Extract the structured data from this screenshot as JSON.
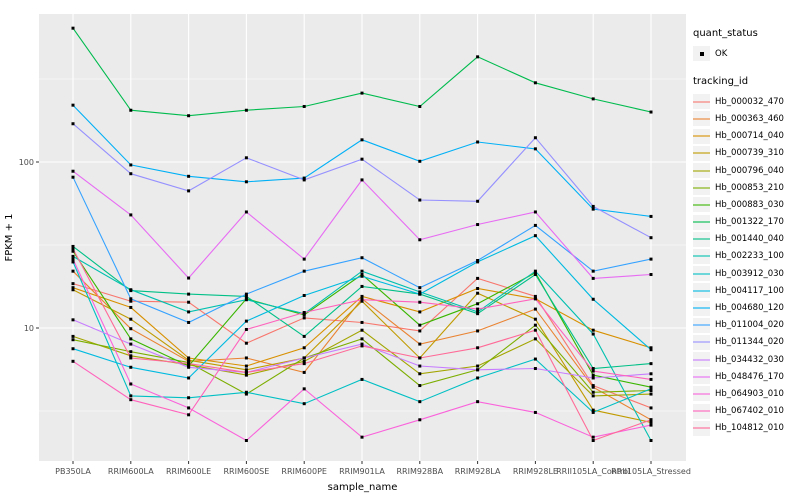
{
  "figure": {
    "background": "#FFFFFF",
    "panel_background": "#EBEBEB",
    "grid_color": "#FFFFFF",
    "tick_label_color": "#4D4D4D",
    "point_color": "#000000"
  },
  "legend": {
    "quant_status_title": "quant_status",
    "quant_status_item": "OK",
    "tracking_id_title": "tracking_id"
  },
  "chart_data": {
    "type": "line",
    "x_type": "categorical",
    "xlabel": "sample_name",
    "ylabel": "FPKM + 1",
    "y_scale": "log10",
    "y_ticks": [
      100,
      10
    ],
    "y_minor_ticks": [
      316.2,
      31.62,
      3.162
    ],
    "ylim": [
      1.6,
      760
    ],
    "grid": true,
    "legend_position": "right",
    "point_shape": "small black square (quant_status = OK)",
    "categories": [
      "PB350LA",
      "RRIM600LA",
      "RRIM600LE",
      "RRIM600SE",
      "RRIM600PE",
      "RRIM901LA",
      "RRIM928BA",
      "RRIM928LA",
      "RRIM928LE",
      "RRII105LA_Control",
      "RRII105LA_Stressed"
    ],
    "series": [
      {
        "name": "Hb_000032_470",
        "color": "#F8766D",
        "values": [
          18.5,
          14.5,
          14.3,
          8.1,
          11.5,
          10.8,
          9.6,
          19.9,
          15.5,
          4.5,
          3.3
        ]
      },
      {
        "name": "Hb_000363_460",
        "color": "#EA8331",
        "values": [
          22,
          9.9,
          6.3,
          6.6,
          5.4,
          15,
          8.0,
          9.6,
          13,
          4.4,
          2.8
        ]
      },
      {
        "name": "Hb_000714_040",
        "color": "#D89000",
        "values": [
          17.5,
          13.3,
          6.6,
          5.9,
          7.6,
          15.5,
          12.5,
          17.3,
          15,
          9.7,
          7.6
        ]
      },
      {
        "name": "Hb_000739_310",
        "color": "#C09B00",
        "values": [
          17,
          11.3,
          6.4,
          5.6,
          6.6,
          14.5,
          6.6,
          16.2,
          11.3,
          3.2,
          2.7
        ]
      },
      {
        "name": "Hb_000796_040",
        "color": "#A3A500",
        "values": [
          8.9,
          6.8,
          6.0,
          5.2,
          6.3,
          9.7,
          5.3,
          5.9,
          8.6,
          3.9,
          4.0
        ]
      },
      {
        "name": "Hb_000853_210",
        "color": "#7CAE00",
        "values": [
          8.5,
          7.2,
          6.2,
          4.0,
          6.6,
          8.6,
          4.5,
          5.6,
          10.4,
          4.1,
          4.2
        ]
      },
      {
        "name": "Hb_000883_030",
        "color": "#39B600",
        "values": [
          29,
          8.6,
          5.9,
          15,
          12,
          21,
          10.4,
          14,
          21.5,
          5.2,
          4.4
        ]
      },
      {
        "name": "Hb_001322_170",
        "color": "#00BB4E",
        "values": [
          640,
          205,
          190,
          205,
          216,
          260,
          216,
          430,
          300,
          240,
          200
        ]
      },
      {
        "name": "Hb_001440_040",
        "color": "#00C087",
        "values": [
          31,
          16.8,
          16,
          15.5,
          8.9,
          17.8,
          16,
          12.2,
          21,
          5.7,
          6.1
        ]
      },
      {
        "name": "Hb_002233_100",
        "color": "#00C0AF",
        "values": [
          27,
          17,
          12.5,
          14.8,
          12.2,
          22,
          16.5,
          12.5,
          22,
          9.2,
          2.1
        ]
      },
      {
        "name": "Hb_003912_030",
        "color": "#00BFC4",
        "values": [
          25,
          3.9,
          3.8,
          4.1,
          3.5,
          4.9,
          3.6,
          5.0,
          6.5,
          3.1,
          4.3
        ]
      },
      {
        "name": "Hb_004117_100",
        "color": "#00BAE0",
        "values": [
          7.5,
          5.8,
          5.0,
          11,
          15.7,
          20.5,
          16,
          25,
          36,
          14.9,
          7.4
        ]
      },
      {
        "name": "Hb_004680_120",
        "color": "#00B0F6",
        "values": [
          220,
          96,
          82,
          76,
          80,
          136,
          101,
          132,
          120,
          52,
          47
        ]
      },
      {
        "name": "Hb_011004_020",
        "color": "#35A2FF",
        "values": [
          81,
          15,
          10.8,
          16,
          22,
          26.5,
          17.5,
          25.5,
          41.5,
          22,
          26
        ]
      },
      {
        "name": "Hb_011344_020",
        "color": "#9590FF",
        "values": [
          170,
          85,
          67,
          106,
          78,
          104,
          59,
          58,
          140,
          54,
          35
        ]
      },
      {
        "name": "Hb_034432_030",
        "color": "#C77CFF",
        "values": [
          11.2,
          8.0,
          5.8,
          5.4,
          6.6,
          8.0,
          5.9,
          5.6,
          5.7,
          5.0,
          5.3
        ]
      },
      {
        "name": "Hb_048476_170",
        "color": "#E76BF3",
        "values": [
          88,
          48,
          20,
          50,
          26,
          78,
          34,
          42,
          50,
          19.9,
          21
        ]
      },
      {
        "name": "Hb_064903_010",
        "color": "#FA62DB",
        "values": [
          26,
          4.6,
          3.3,
          2.1,
          4.3,
          2.2,
          2.8,
          3.6,
          3.1,
          2.2,
          2.6
        ]
      },
      {
        "name": "Hb_067402_010",
        "color": "#FF62BC",
        "values": [
          6.3,
          3.7,
          3.0,
          9.8,
          12.4,
          14.8,
          14.3,
          13,
          15,
          5.5,
          4.9
        ]
      },
      {
        "name": "Hb_104812_010",
        "color": "#FF6A98",
        "values": [
          30,
          6.6,
          6.1,
          5.4,
          6.1,
          7.8,
          6.6,
          7.6,
          9.7,
          2.1,
          2.8
        ]
      }
    ]
  }
}
